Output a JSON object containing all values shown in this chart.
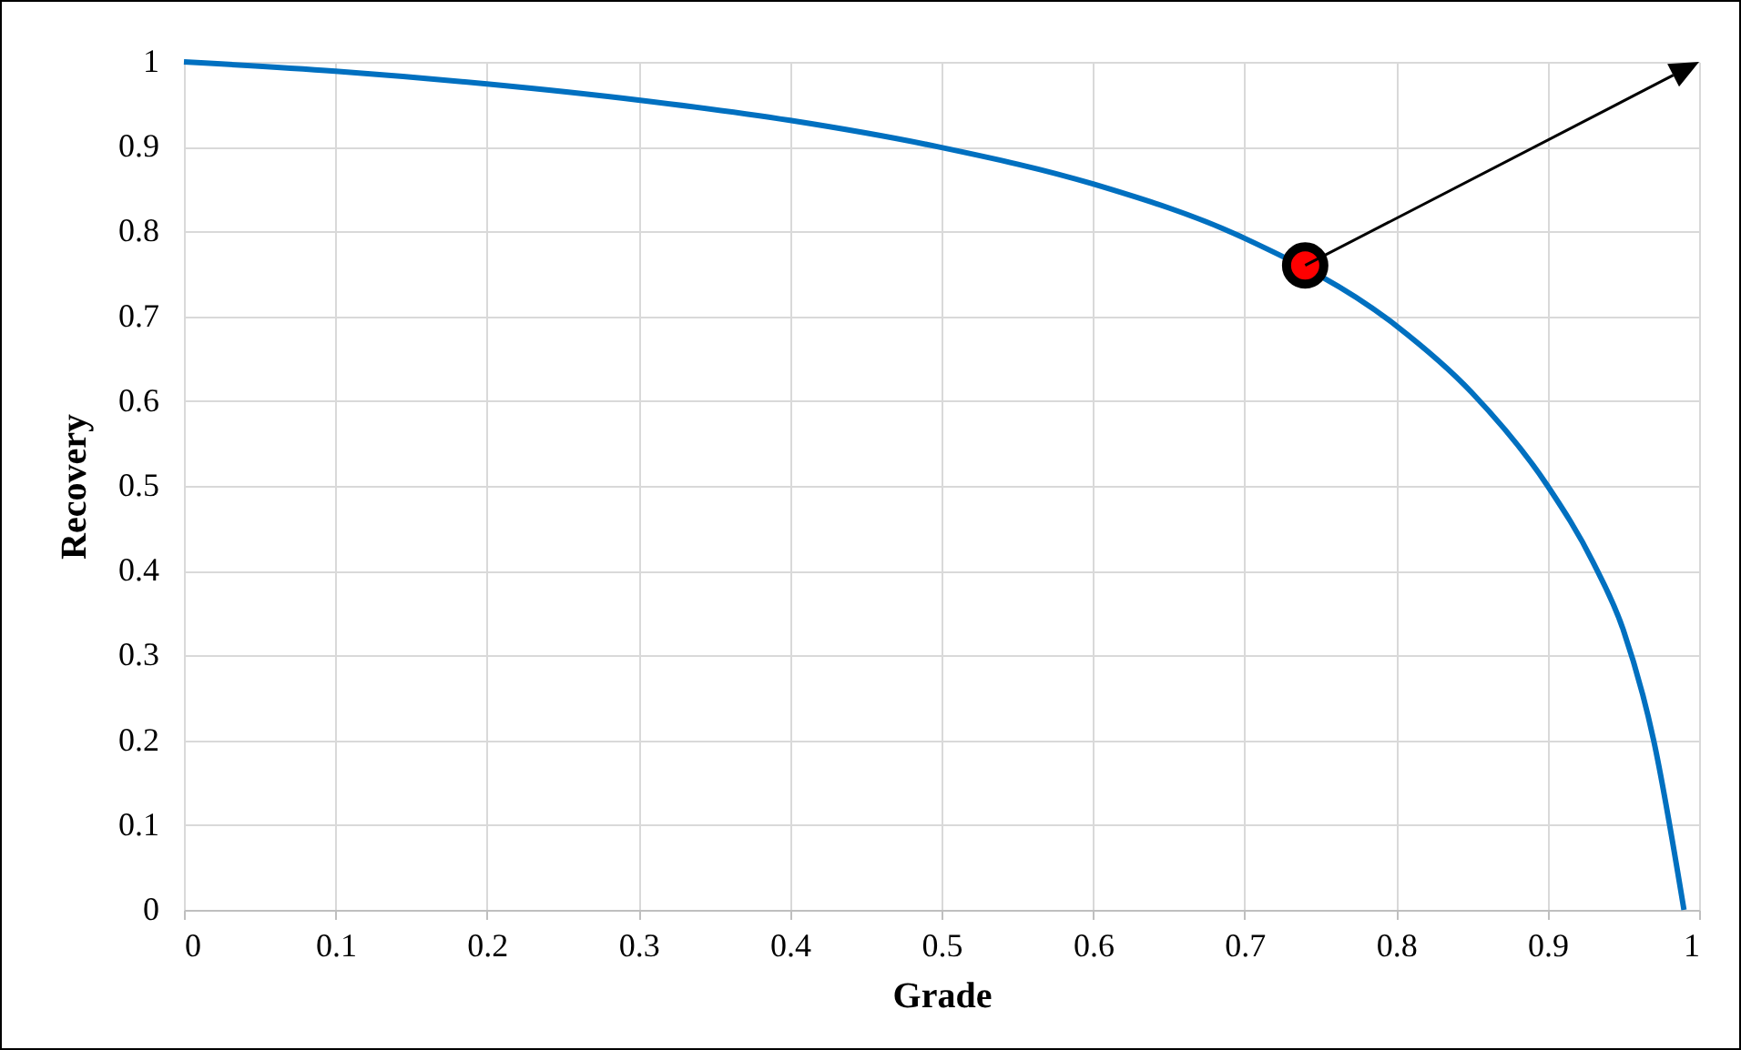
{
  "chart_data": {
    "type": "line",
    "xlabel": "Grade",
    "ylabel": "Recovery",
    "xlim": [
      0,
      1
    ],
    "ylim": [
      0,
      1
    ],
    "xticks": [
      0,
      0.1,
      0.2,
      0.3,
      0.4,
      0.5,
      0.6,
      0.7,
      0.8,
      0.9,
      1
    ],
    "yticks": [
      0,
      0.1,
      0.2,
      0.3,
      0.4,
      0.5,
      0.6,
      0.7,
      0.8,
      0.9,
      1
    ],
    "grid": true,
    "legend": false,
    "series": [
      {
        "type": "line",
        "color": "#0070c0",
        "marker": "none",
        "x": [
          0,
          0.1,
          0.2,
          0.3,
          0.4,
          0.5,
          0.6,
          0.7,
          0.8,
          0.85,
          0.9,
          0.93,
          0.95,
          0.97,
          0.99
        ],
        "values": [
          1,
          0.989,
          0.974,
          0.955,
          0.931,
          0.899,
          0.856,
          0.792,
          0.689,
          0.61,
          0.5,
          0.41,
          0.33,
          0.2,
          0
        ]
      },
      {
        "type": "scatter",
        "color": "#ff0000",
        "marker": "circle",
        "x": [
          0.74
        ],
        "values": [
          0.76
        ]
      }
    ]
  }
}
